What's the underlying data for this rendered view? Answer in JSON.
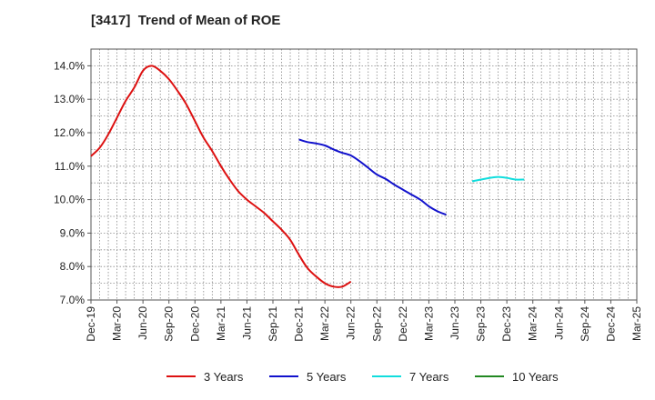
{
  "chart_data": {
    "type": "line",
    "title": "[3417]  Trend of Mean of ROE",
    "x_labels": [
      "Dec-19",
      "Mar-20",
      "Jun-20",
      "Sep-20",
      "Dec-20",
      "Mar-21",
      "Jun-21",
      "Sep-21",
      "Dec-21",
      "Mar-22",
      "Jun-22",
      "Sep-22",
      "Dec-22",
      "Mar-23",
      "Jun-23",
      "Sep-23",
      "Dec-23",
      "Mar-24",
      "Jun-24",
      "Sep-24",
      "Dec-24",
      "Mar-25"
    ],
    "y_ticks": [
      "7.0%",
      "8.0%",
      "9.0%",
      "10.0%",
      "11.0%",
      "12.0%",
      "13.0%",
      "14.0%"
    ],
    "ylim": [
      7.0,
      14.5
    ],
    "grid": true,
    "legend_position": "bottom",
    "series": [
      {
        "name": "3 Years",
        "color": "#dd1111",
        "values": [
          11.3,
          11.55,
          11.95,
          12.45,
          12.95,
          13.35,
          13.85,
          14.0,
          13.85,
          13.6,
          13.25,
          12.85,
          12.35,
          11.85,
          11.45,
          11.0,
          10.6,
          10.25,
          10.0,
          9.8,
          9.6,
          9.35,
          9.1,
          8.8,
          8.35,
          7.95,
          7.7,
          7.5,
          7.4,
          7.4,
          7.55
        ]
      },
      {
        "name": "5 Years",
        "color": "#1111cc",
        "values": [
          null,
          null,
          null,
          null,
          null,
          null,
          null,
          null,
          null,
          null,
          null,
          null,
          null,
          null,
          null,
          null,
          null,
          null,
          null,
          null,
          null,
          null,
          null,
          null,
          11.8,
          11.72,
          11.68,
          11.62,
          11.5,
          11.4,
          11.32,
          11.15,
          10.95,
          10.75,
          10.62,
          10.45,
          10.3,
          10.15,
          10.0,
          9.8,
          9.65,
          9.55
        ]
      },
      {
        "name": "7 Years",
        "color": "#11dddd",
        "values": [
          null,
          null,
          null,
          null,
          null,
          null,
          null,
          null,
          null,
          null,
          null,
          null,
          null,
          null,
          null,
          null,
          null,
          null,
          null,
          null,
          null,
          null,
          null,
          null,
          null,
          null,
          null,
          null,
          null,
          null,
          null,
          null,
          null,
          null,
          null,
          null,
          null,
          null,
          null,
          null,
          null,
          null,
          null,
          null,
          10.55,
          10.6,
          10.65,
          10.68,
          10.65,
          10.6,
          10.6
        ]
      },
      {
        "name": "10 Years",
        "color": "#228822",
        "values": []
      }
    ]
  }
}
